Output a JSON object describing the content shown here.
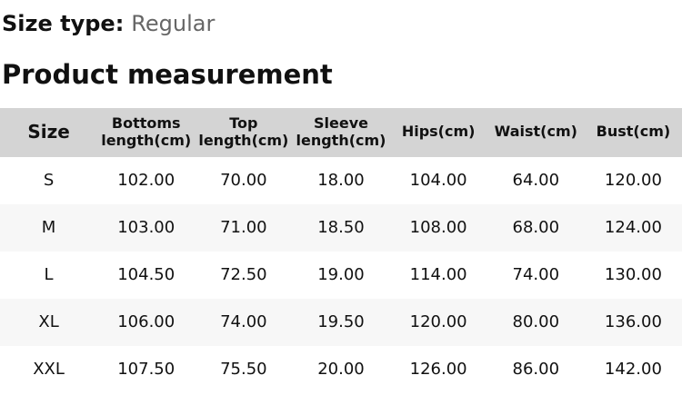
{
  "header": {
    "size_type_label": "Size type:",
    "size_type_value": "Regular",
    "section_title": "Product measurement"
  },
  "table": {
    "columns": [
      "Size",
      "Bottoms length(cm)",
      "Top length(cm)",
      "Sleeve length(cm)",
      "Hips(cm)",
      "Waist(cm)",
      "Bust(cm)"
    ],
    "rows": [
      {
        "size": "S",
        "bottoms_length_cm": "102.00",
        "top_length_cm": "70.00",
        "sleeve_length_cm": "18.00",
        "hips_cm": "104.00",
        "waist_cm": "64.00",
        "bust_cm": "120.00"
      },
      {
        "size": "M",
        "bottoms_length_cm": "103.00",
        "top_length_cm": "71.00",
        "sleeve_length_cm": "18.50",
        "hips_cm": "108.00",
        "waist_cm": "68.00",
        "bust_cm": "124.00"
      },
      {
        "size": "L",
        "bottoms_length_cm": "104.50",
        "top_length_cm": "72.50",
        "sleeve_length_cm": "19.00",
        "hips_cm": "114.00",
        "waist_cm": "74.00",
        "bust_cm": "130.00"
      },
      {
        "size": "XL",
        "bottoms_length_cm": "106.00",
        "top_length_cm": "74.00",
        "sleeve_length_cm": "19.50",
        "hips_cm": "120.00",
        "waist_cm": "80.00",
        "bust_cm": "136.00"
      },
      {
        "size": "XXL",
        "bottoms_length_cm": "107.50",
        "top_length_cm": "75.50",
        "sleeve_length_cm": "20.00",
        "hips_cm": "126.00",
        "waist_cm": "86.00",
        "bust_cm": "142.00"
      }
    ]
  },
  "colors": {
    "header_row_bg": "#d4d4d4",
    "alt_row_bg": "#f7f7f7",
    "muted_text": "#666666",
    "text": "#111111"
  }
}
